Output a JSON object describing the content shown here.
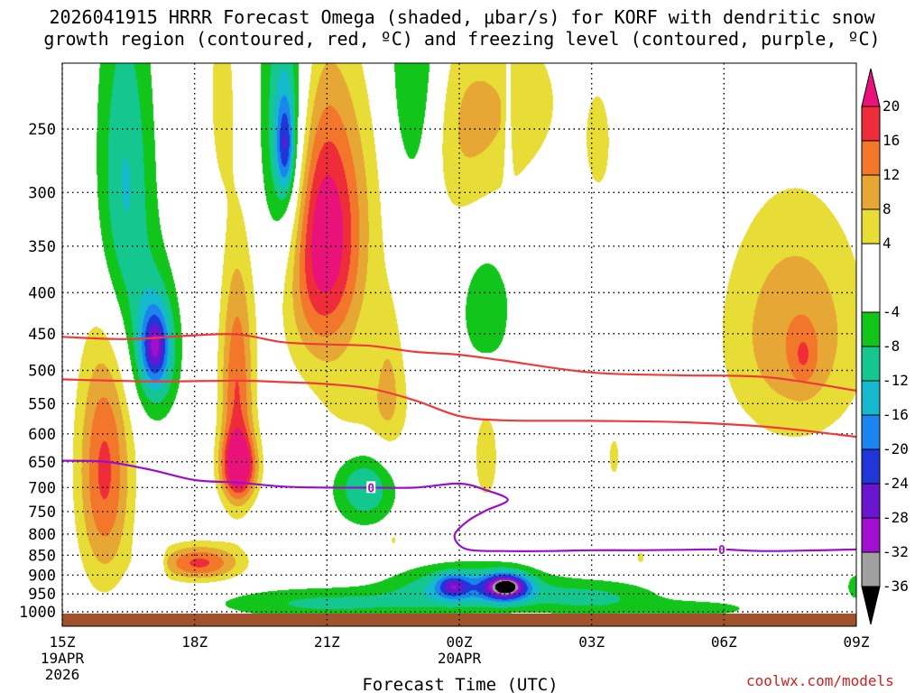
{
  "chart_data": {
    "type": "heatmap",
    "title_line1": "2026041915 HRRR Forecast Omega (shaded, μbar/s) for KORF with dendritic snow",
    "title_line2": "growth region (contoured, red, ºC) and freezing level (contoured, purple, ºC)",
    "xlabel": "Forecast Time (UTC)",
    "ylabel": "",
    "x_range_hours": [
      0,
      18
    ],
    "x_ticks": [
      {
        "hour": 0,
        "label": "15Z",
        "sub1": "19APR",
        "sub2": "2026"
      },
      {
        "hour": 3,
        "label": "18Z",
        "sub1": "",
        "sub2": ""
      },
      {
        "hour": 6,
        "label": "21Z",
        "sub1": "",
        "sub2": ""
      },
      {
        "hour": 9,
        "label": "00Z",
        "sub1": "20APR",
        "sub2": ""
      },
      {
        "hour": 12,
        "label": "03Z",
        "sub1": "",
        "sub2": ""
      },
      {
        "hour": 15,
        "label": "06Z",
        "sub1": "",
        "sub2": ""
      },
      {
        "hour": 18,
        "label": "09Z",
        "sub1": "",
        "sub2": ""
      }
    ],
    "y_range_mb": [
      200,
      1030
    ],
    "y_ticks": [
      250,
      300,
      350,
      400,
      450,
      500,
      550,
      600,
      650,
      700,
      750,
      800,
      850,
      900,
      950,
      1000
    ],
    "colorbar": {
      "labels": [
        "20",
        "16",
        "12",
        "8",
        "4",
        "-4",
        "-8",
        "-12",
        "-16",
        "-20",
        "-24",
        "-28",
        "-32",
        "-36"
      ],
      "top_arrow_color": "#e8127a",
      "bottom_arrow_color": "#000000",
      "bins": [
        {
          "range": [
            16,
            20
          ],
          "color": "#ee2c3a"
        },
        {
          "range": [
            12,
            16
          ],
          "color": "#f3772a"
        },
        {
          "range": [
            8,
            12
          ],
          "color": "#e6a734"
        },
        {
          "range": [
            4,
            8
          ],
          "color": "#e8dc36"
        },
        {
          "range": [
            -4,
            4
          ],
          "color": "#ffffff"
        },
        {
          "range": [
            -8,
            -4
          ],
          "color": "#12c51a"
        },
        {
          "range": [
            -12,
            -8
          ],
          "color": "#13c78f"
        },
        {
          "range": [
            -16,
            -12
          ],
          "color": "#15b9cd"
        },
        {
          "range": [
            -20,
            -16
          ],
          "color": "#1b84ef"
        },
        {
          "range": [
            -24,
            -20
          ],
          "color": "#2036d8"
        },
        {
          "range": [
            -28,
            -24
          ],
          "color": "#6a16cf"
        },
        {
          "range": [
            -32,
            -28
          ],
          "color": "#a20fd0"
        },
        {
          "range": [
            -36,
            -32
          ],
          "color": "#a0a0a0"
        }
      ]
    },
    "omega_cells": [
      {
        "hour": 0.95,
        "mb": 665,
        "sh": 0.6,
        "sp": 235,
        "peak": 17
      },
      {
        "hour": 3.1,
        "mb": 868,
        "sh": 0.9,
        "sp": 45,
        "peak": 17
      },
      {
        "hour": 3.95,
        "mb": 530,
        "sh": 0.38,
        "sp": 185,
        "peak": 16
      },
      {
        "hour": 4.0,
        "mb": 658,
        "sh": 0.4,
        "sp": 60,
        "peak": 21
      },
      {
        "hour": 5.9,
        "mb": 340,
        "sh": 0.95,
        "sp": 130,
        "peak": 25
      },
      {
        "hour": 3.6,
        "mb": 225,
        "sh": 0.3,
        "sp": 70,
        "peak": 6
      },
      {
        "hour": 7.4,
        "mb": 510,
        "sh": 0.35,
        "sp": 120,
        "peak": 6
      },
      {
        "hour": 8.8,
        "mb": 260,
        "sh": 1.4,
        "sp": 80,
        "peak": 7
      },
      {
        "hour": 10.2,
        "mb": 230,
        "sh": 1.6,
        "sp": 60,
        "peak": 5
      },
      {
        "hour": 6.9,
        "mb": 560,
        "sh": 1.1,
        "sp": 80,
        "peak": 5
      },
      {
        "hour": 9.6,
        "mb": 640,
        "sh": 0.35,
        "sp": 110,
        "peak": 6
      },
      {
        "hour": 7.5,
        "mb": 812,
        "sh": 0.15,
        "sp": 25,
        "peak": 5
      },
      {
        "hour": 12.15,
        "mb": 262,
        "sh": 0.3,
        "sp": 40,
        "peak": 6
      },
      {
        "hour": 12.5,
        "mb": 640,
        "sh": 0.2,
        "sp": 60,
        "peak": 5
      },
      {
        "hour": 16.6,
        "mb": 450,
        "sh": 1.6,
        "sp": 150,
        "peak": 11.5
      },
      {
        "hour": 16.8,
        "mb": 480,
        "sh": 0.3,
        "sp": 40,
        "peak": 6
      },
      {
        "hour": 13.1,
        "mb": 855,
        "sh": 0.15,
        "sp": 25,
        "peak": 5
      },
      {
        "hour": 1.4,
        "mb": 300,
        "sh": 0.65,
        "sp": 155,
        "peak": -13
      },
      {
        "hour": 2.1,
        "mb": 470,
        "sh": 0.5,
        "sp": 90,
        "peak": -17
      },
      {
        "hour": 2.1,
        "mb": 465,
        "sh": 0.25,
        "sp": 40,
        "peak": -12
      },
      {
        "hour": 5.05,
        "mb": 260,
        "sh": 0.55,
        "sp": 120,
        "peak": -17
      },
      {
        "hour": 5.05,
        "mb": 262,
        "sh": 0.2,
        "sp": 35,
        "peak": -15
      },
      {
        "hour": 8.0,
        "mb": 225,
        "sh": 0.65,
        "sp": 95,
        "peak": -12
      },
      {
        "hour": 9.6,
        "mb": 420,
        "sh": 0.6,
        "sp": 80,
        "peak": -7.5
      },
      {
        "hour": 6.85,
        "mb": 700,
        "sh": 0.7,
        "sp": 75,
        "peak": -12
      },
      {
        "hour": 10.1,
        "mb": 270,
        "sh": 0.08,
        "sp": 70,
        "peak": -7
      },
      {
        "hour": 2.2,
        "mb": 880,
        "sh": 0.12,
        "sp": 90,
        "peak": -6
      },
      {
        "hour": 9.2,
        "mb": 930,
        "sh": 1.6,
        "sp": 58,
        "peak": -14
      },
      {
        "hour": 8.85,
        "mb": 928,
        "sh": 0.35,
        "sp": 30,
        "peak": -14
      },
      {
        "hour": 10.05,
        "mb": 930,
        "sh": 0.5,
        "sp": 35,
        "peak": -26
      },
      {
        "hour": 10.05,
        "mb": 930,
        "sh": 0.18,
        "sp": 14,
        "peak": -14
      },
      {
        "hour": 12.0,
        "mb": 960,
        "sh": 1.6,
        "sp": 50,
        "peak": -9
      },
      {
        "hour": 6.0,
        "mb": 975,
        "sh": 2.6,
        "sp": 45,
        "peak": -9
      },
      {
        "hour": 14.5,
        "mb": 990,
        "sh": 1.3,
        "sp": 25,
        "peak": -6
      },
      {
        "hour": 18.0,
        "mb": 930,
        "sh": 0.25,
        "sp": 40,
        "peak": -7
      }
    ],
    "dgz_contours_red": [
      {
        "name": "upper",
        "points": [
          [
            0,
            454
          ],
          [
            1.5,
            457
          ],
          [
            3,
            452
          ],
          [
            4,
            451
          ],
          [
            5,
            461
          ],
          [
            6,
            464
          ],
          [
            7,
            466
          ],
          [
            8,
            474
          ],
          [
            9,
            478
          ],
          [
            10,
            486
          ],
          [
            12,
            503
          ],
          [
            14,
            507
          ],
          [
            16,
            510
          ],
          [
            18,
            530
          ]
        ]
      },
      {
        "name": "lower",
        "points": [
          [
            0,
            513
          ],
          [
            2,
            516
          ],
          [
            4,
            515
          ],
          [
            5,
            517
          ],
          [
            6,
            520
          ],
          [
            7,
            527
          ],
          [
            8,
            545
          ],
          [
            9,
            570
          ],
          [
            10,
            577
          ],
          [
            12,
            578
          ],
          [
            14,
            580
          ],
          [
            16,
            588
          ],
          [
            18,
            605
          ]
        ]
      }
    ],
    "freezing_level_purple": {
      "label": "0",
      "label_positions": [
        [
          7.0,
          700
        ],
        [
          14.95,
          836
        ]
      ],
      "points": [
        [
          0,
          648
        ],
        [
          1,
          650
        ],
        [
          2,
          665
        ],
        [
          3,
          685
        ],
        [
          4,
          690
        ],
        [
          5,
          698
        ],
        [
          6,
          700
        ],
        [
          7,
          700
        ],
        [
          8,
          700
        ],
        [
          9,
          692
        ],
        [
          9.6,
          705
        ],
        [
          10.1,
          725
        ],
        [
          9.6,
          748
        ],
        [
          9.2,
          770
        ],
        [
          8.9,
          800
        ],
        [
          9.0,
          826
        ],
        [
          9.3,
          838
        ],
        [
          10,
          840
        ],
        [
          11,
          840
        ],
        [
          12,
          838
        ],
        [
          13,
          838
        ],
        [
          14,
          837
        ],
        [
          14.95,
          836
        ],
        [
          16,
          840
        ],
        [
          18,
          836
        ]
      ]
    },
    "terrain_color": "#a0522d"
  },
  "credit": "coolwx.com/models"
}
